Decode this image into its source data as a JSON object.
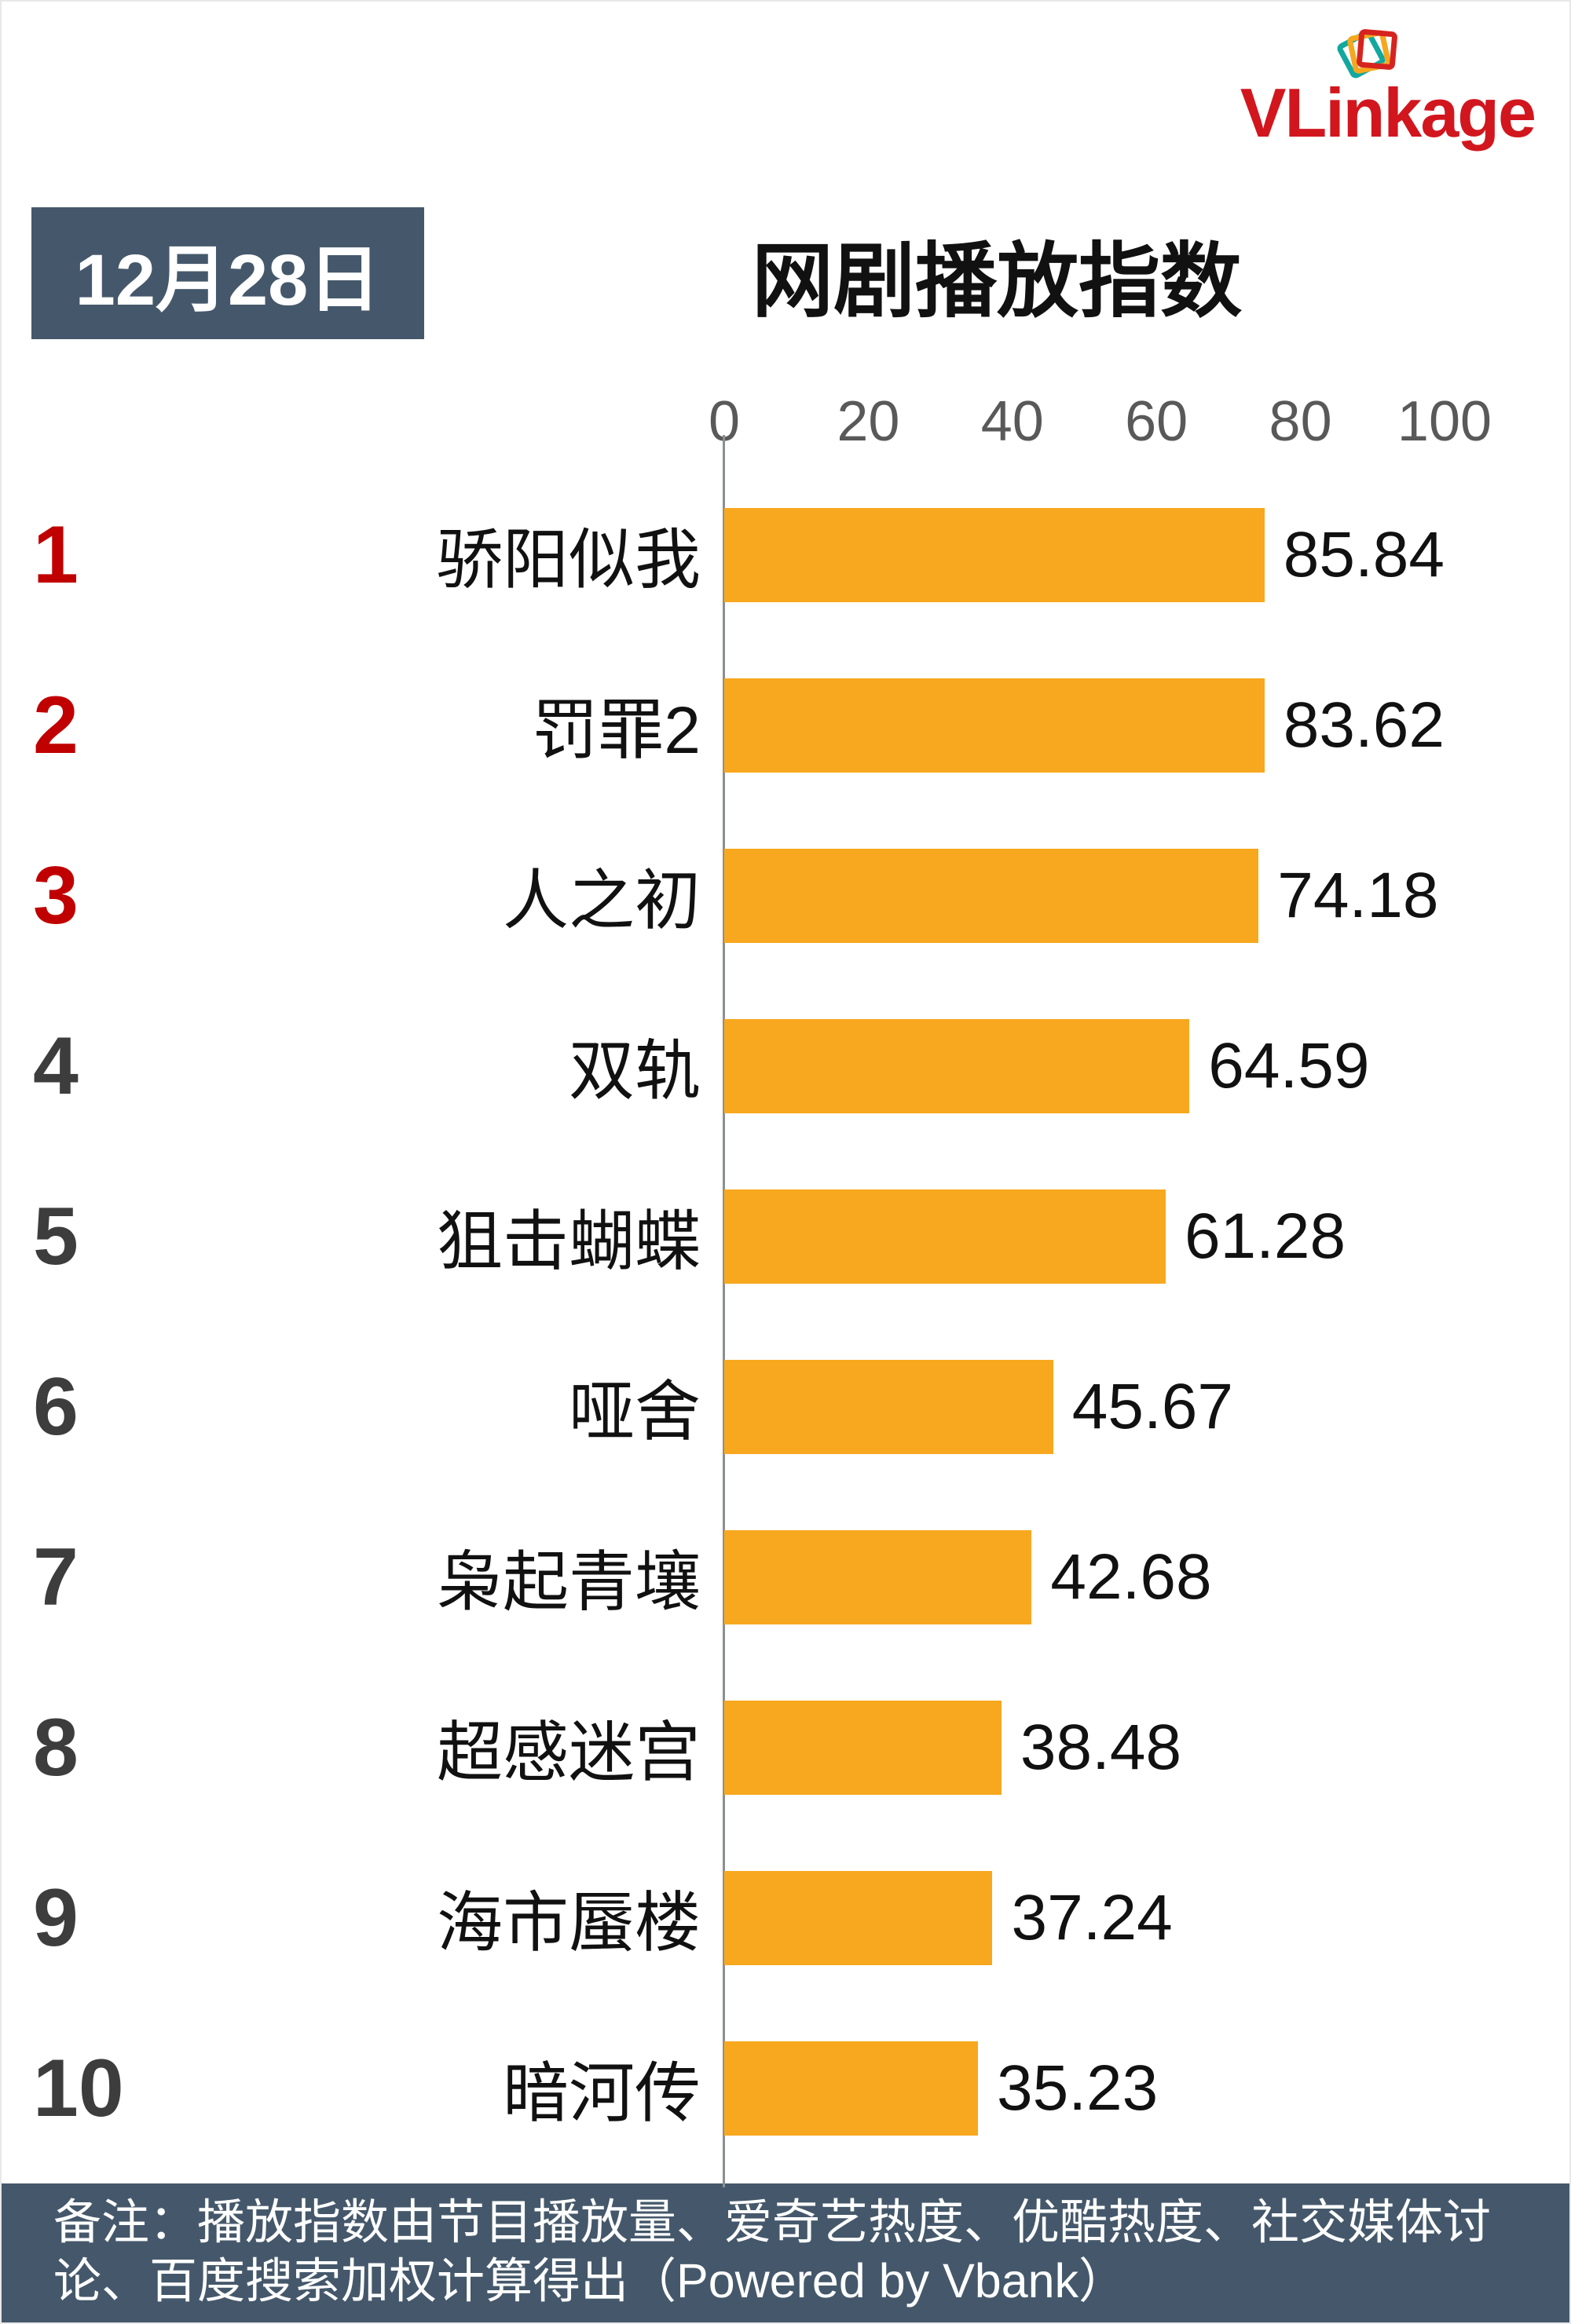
{
  "header": {
    "logo_text": "VLinkage",
    "date": "12月28日",
    "title": "网剧播放指数"
  },
  "chart_data": {
    "type": "bar",
    "orientation": "horizontal",
    "title": "网剧播放指数",
    "date": "12月28日",
    "categories": [
      "骄阳似我",
      "罚罪2",
      "人之初",
      "双轨",
      "狙击蝴蝶",
      "哑舍",
      "枭起青壤",
      "超感迷宫",
      "海市蜃楼",
      "暗河传"
    ],
    "values": [
      85.84,
      83.62,
      74.18,
      64.59,
      61.28,
      45.67,
      42.68,
      38.48,
      37.24,
      35.23
    ],
    "ranks": [
      1,
      2,
      3,
      4,
      5,
      6,
      7,
      8,
      9,
      10
    ],
    "rank_colors": [
      "#c00000",
      "#c00000",
      "#c00000",
      "#3d3d3d",
      "#3d3d3d",
      "#3d3d3d",
      "#3d3d3d",
      "#3d3d3d",
      "#3d3d3d",
      "#3d3d3d"
    ],
    "x_ticks": [
      0,
      20,
      40,
      60,
      80,
      100
    ],
    "xlim": [
      0,
      100
    ],
    "bar_color": "#F7A81E",
    "grid": false,
    "legend": false,
    "value_labels": true
  },
  "footer": {
    "note": "备注：播放指数由节目播放量、爱奇艺热度、优酷热度、社交媒体讨论、百度搜索加权计算得出（Powered by Vbank）"
  },
  "colors": {
    "bar": "#F7A81E",
    "badge_bg": "#45586B",
    "footer_bg": "#45586B",
    "rank_top3": "#c00000",
    "rank_rest": "#3d3d3d",
    "logo_red": "#D2161E",
    "axis_line": "#8a8f94"
  }
}
